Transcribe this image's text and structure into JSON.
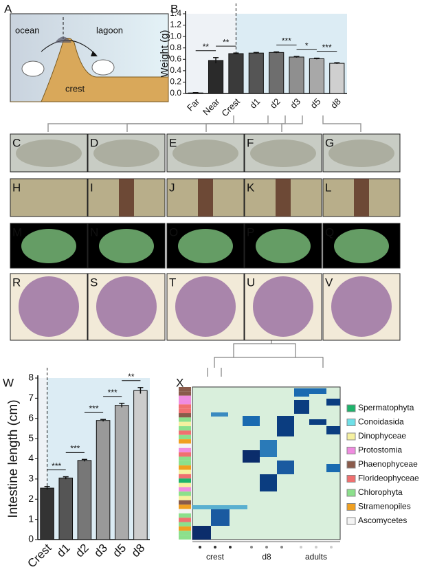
{
  "panel_labels": [
    "A",
    "B",
    "C",
    "D",
    "E",
    "F",
    "G",
    "H",
    "I",
    "J",
    "K",
    "L",
    "M",
    "N",
    "O",
    "P",
    "Q",
    "R",
    "S",
    "T",
    "U",
    "V",
    "W",
    "X"
  ],
  "panel_a": {
    "labels": [
      "ocean",
      "lagoon",
      "crest"
    ]
  },
  "chart_data": [
    {
      "type": "bar",
      "ylabel": "Weight (g)",
      "categories": [
        "Far",
        "Near",
        "Crest",
        "d1",
        "d2",
        "d3",
        "d5",
        "d8"
      ],
      "values": [
        0.01,
        0.58,
        0.7,
        0.71,
        0.72,
        0.64,
        0.61,
        0.53
      ],
      "errors": [
        0.005,
        0.05,
        0.01,
        0.01,
        0.01,
        0.01,
        0.01,
        0.01
      ],
      "colors": [
        "#111111",
        "#2a2a2a",
        "#3a3a3a",
        "#555555",
        "#6e6e6e",
        "#8f8f8f",
        "#a8a8a8",
        "#cfcfcf"
      ],
      "ylim": [
        0,
        1.4
      ],
      "yticks": [
        {
          "value": 0,
          "label": "0.0"
        },
        0.2,
        0.4,
        0.6,
        0.8,
        {
          "value": 1,
          "label": "1.0"
        },
        1.2,
        1.4
      ],
      "significance": [
        {
          "label": "**",
          "between": [
            "Far",
            "Near"
          ]
        },
        {
          "label": "**",
          "between": [
            "Near",
            "Crest"
          ]
        },
        {
          "label": "***",
          "between": [
            "d2",
            "d3"
          ]
        },
        {
          "label": "*",
          "between": [
            "d3",
            "d5"
          ]
        },
        {
          "label": "***",
          "between": [
            "d5",
            "d8"
          ]
        }
      ]
    },
    {
      "type": "bar",
      "ylabel": "Intestine length (cm)",
      "categories": [
        "Crest",
        "d1",
        "d2",
        "d3",
        "d5",
        "d8"
      ],
      "values": [
        2.55,
        3.05,
        3.92,
        5.9,
        6.65,
        7.38
      ],
      "errors": [
        0.08,
        0.06,
        0.05,
        0.05,
        0.1,
        0.15
      ],
      "colors": [
        "#333333",
        "#555555",
        "#777777",
        "#999999",
        "#aaaaaa",
        "#cccccc"
      ],
      "ylim": [
        0,
        8
      ],
      "yticks": [
        0,
        1,
        2,
        3,
        4,
        5,
        6,
        7,
        8
      ],
      "significance": [
        {
          "label": "***",
          "between": [
            "Crest",
            "d1"
          ]
        },
        {
          "label": "***",
          "between": [
            "d1",
            "d2"
          ]
        },
        {
          "label": "***",
          "between": [
            "d2",
            "d3"
          ]
        },
        {
          "label": "***",
          "between": [
            "d3",
            "d5"
          ]
        },
        {
          "label": "**",
          "between": [
            "d5",
            "d8"
          ]
        }
      ]
    }
  ],
  "heatmap": {
    "legend": [
      {
        "name": "Spermatophyta",
        "color": "#1db36b"
      },
      {
        "name": "Conoidasida",
        "color": "#6fe0e8"
      },
      {
        "name": "Dinophyceae",
        "color": "#f6f1a0"
      },
      {
        "name": "Protostomia",
        "color": "#f08ce0"
      },
      {
        "name": "Phaenophyceae",
        "color": "#8a5a4a"
      },
      {
        "name": "Florideophyceae",
        "color": "#f07070"
      },
      {
        "name": "Chlorophyta",
        "color": "#8ce08c"
      },
      {
        "name": "Stramenopiles",
        "color": "#f0a020"
      },
      {
        "name": "Ascomycetes",
        "color": "#f4f4f4"
      }
    ],
    "groups": [
      "crest",
      "d8",
      "adults"
    ]
  }
}
